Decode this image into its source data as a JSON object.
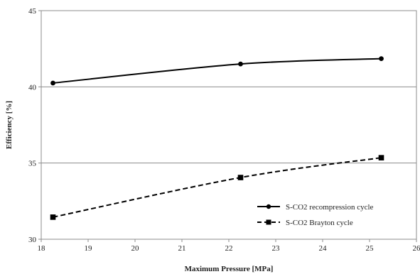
{
  "chart_data": {
    "type": "line",
    "title": "",
    "xlabel": "Maximum Pressure [MPa]",
    "ylabel": "Efficiency [%]",
    "xlim": [
      18,
      26
    ],
    "ylim": [
      30,
      45
    ],
    "xticks": [
      18,
      19,
      20,
      21,
      22,
      23,
      24,
      25,
      26
    ],
    "yticks": [
      30,
      35,
      40,
      45
    ],
    "grid": {
      "horizontal_lines_at": [
        35,
        40
      ],
      "vertical": false
    },
    "legend_position": "bottom-right",
    "series": [
      {
        "name": "S-CO2 recompression cycle",
        "marker": "circle",
        "line_style": "solid",
        "color": "#000000",
        "x": [
          18.25,
          22.25,
          25.25
        ],
        "y": [
          40.25,
          41.5,
          41.85
        ]
      },
      {
        "name": "S-CO2 Brayton cycle",
        "marker": "square",
        "line_style": "dashed",
        "color": "#000000",
        "x": [
          18.25,
          22.25,
          25.25
        ],
        "y": [
          31.45,
          34.05,
          35.35
        ]
      }
    ]
  }
}
